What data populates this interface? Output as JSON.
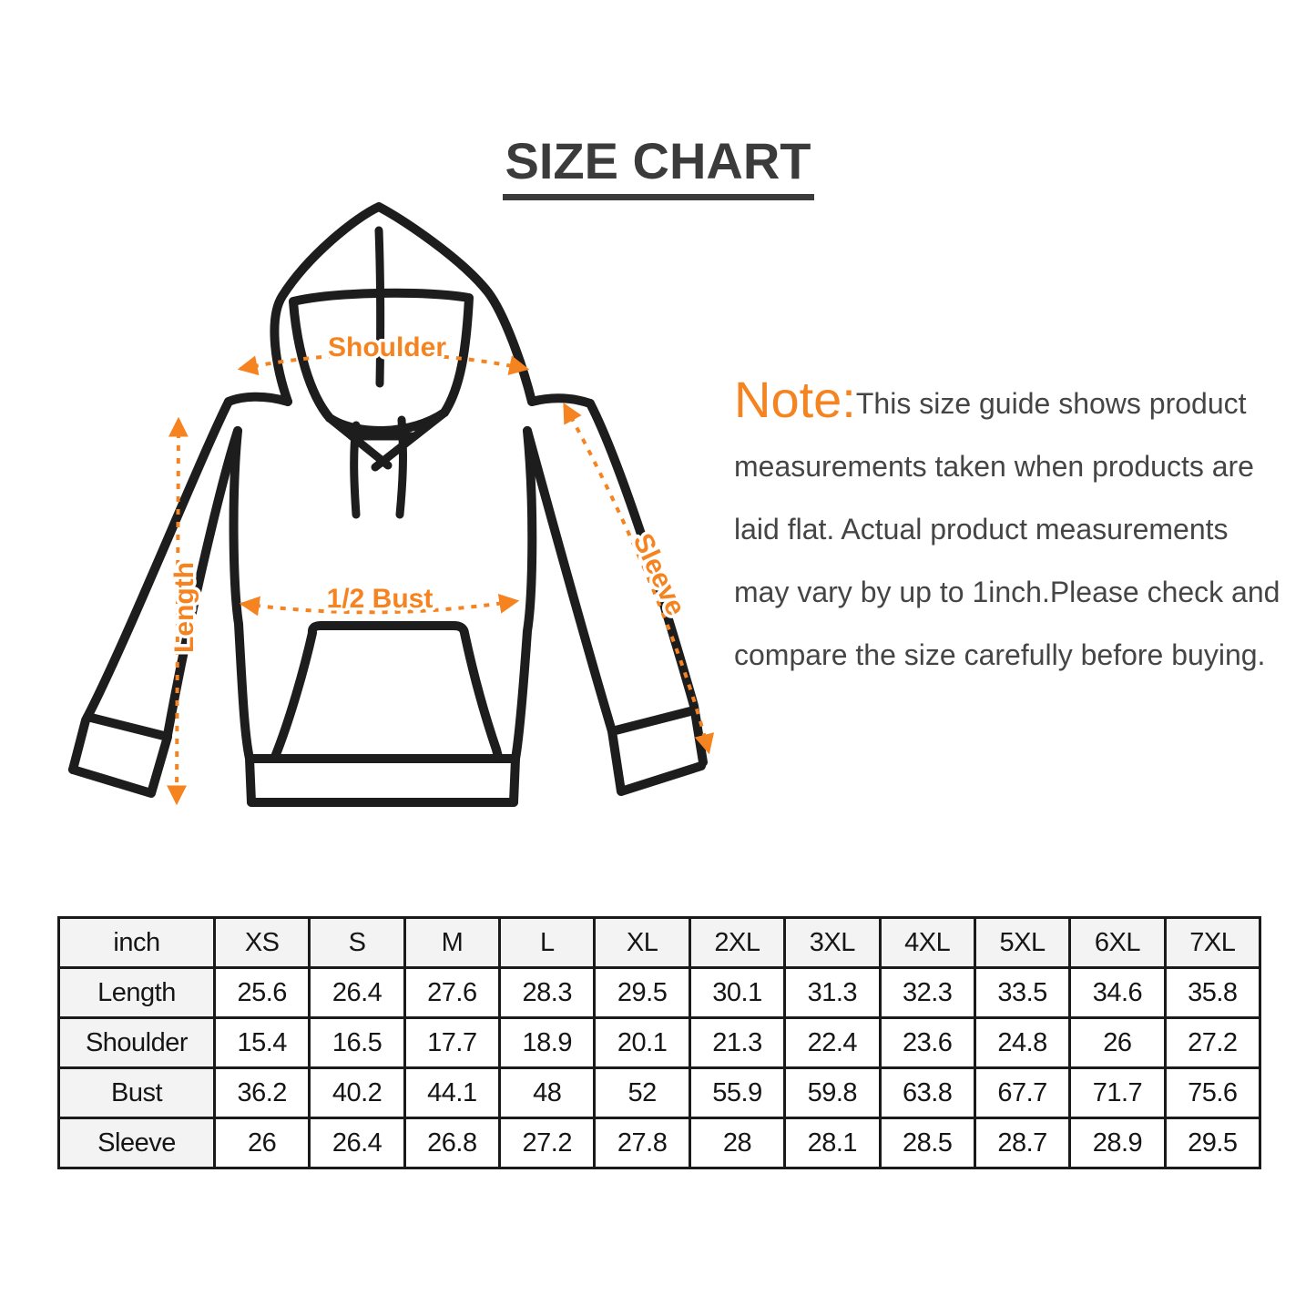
{
  "title": "SIZE CHART",
  "note": {
    "label": "Note:",
    "lines": [
      "This size guide shows product",
      "measurements taken when products are",
      "laid flat. Actual product measurements",
      "may vary by up to 1inch.Please check and",
      "compare the size carefully before buying."
    ]
  },
  "diagram": {
    "labels": {
      "shoulder": "Shoulder",
      "length": "Length",
      "bust": "1/2 Bust",
      "sleeve": "Sleeve"
    }
  },
  "colors": {
    "accent_orange": "#f5831f",
    "title_gray": "#3b3b3b",
    "note_text": "#454545",
    "line_black": "#1d1d1d",
    "table_border": "#1a1a1a",
    "label_cell_bg": "#f3f3f3",
    "page_bg": "#ffffff"
  },
  "chart_data": {
    "type": "table",
    "title": "SIZE CHART",
    "unit": "inch",
    "columns": [
      "XS",
      "S",
      "M",
      "L",
      "XL",
      "2XL",
      "3XL",
      "4XL",
      "5XL",
      "6XL",
      "7XL"
    ],
    "rows": [
      {
        "label": "Length",
        "values": [
          "25.6",
          "26.4",
          "27.6",
          "28.3",
          "29.5",
          "30.1",
          "31.3",
          "32.3",
          "33.5",
          "34.6",
          "35.8"
        ]
      },
      {
        "label": "Shoulder",
        "values": [
          "15.4",
          "16.5",
          "17.7",
          "18.9",
          "20.1",
          "21.3",
          "22.4",
          "23.6",
          "24.8",
          "26",
          "27.2"
        ]
      },
      {
        "label": "Bust",
        "values": [
          "36.2",
          "40.2",
          "44.1",
          "48",
          "52",
          "55.9",
          "59.8",
          "63.8",
          "67.7",
          "71.7",
          "75.6"
        ]
      },
      {
        "label": "Sleeve",
        "values": [
          "26",
          "26.4",
          "26.8",
          "27.2",
          "27.8",
          "28",
          "28.1",
          "28.5",
          "28.7",
          "28.9",
          "29.5"
        ]
      }
    ]
  }
}
